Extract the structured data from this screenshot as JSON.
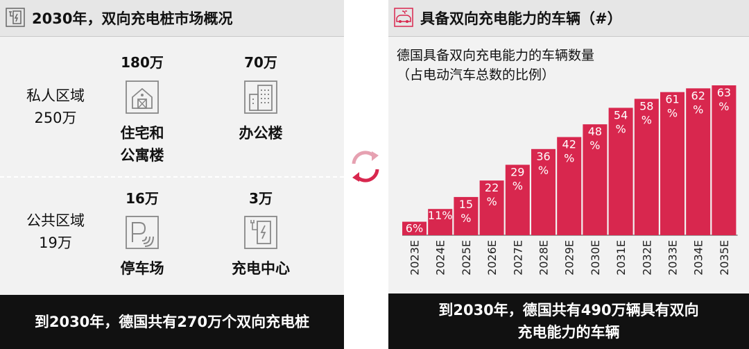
{
  "left": {
    "title": "2030年，双向充电桩市场概况",
    "private": {
      "name": "私人区域",
      "total": "250万"
    },
    "public": {
      "name": "公共区域",
      "total": "19万"
    },
    "tiles": {
      "residential": {
        "count": "180万",
        "label_1": "住宅和",
        "label_2": "公寓楼",
        "icon": "house-icon"
      },
      "office": {
        "count": "70万",
        "label": "办公楼",
        "icon": "office-building-icon"
      },
      "parking": {
        "count": "16万",
        "label": "停车场",
        "icon": "parking-icon"
      },
      "charging": {
        "count": "3万",
        "label": "充电中心",
        "icon": "charging-station-icon"
      }
    },
    "footer": "到2030年，德国共有270万个双向充电桩"
  },
  "right": {
    "title": "具备双向充电能力的车辆（#）",
    "subtitle_1": "德国具备双向充电能力的车辆数量",
    "subtitle_2": "（占电动汽车总数的比例）",
    "footer_1": "到2030年，德国共有490万辆具有双向",
    "footer_2": "充电能力的车辆"
  },
  "colors": {
    "accent": "#d8274e",
    "panel": "#f2f2f2",
    "header": "#e6e6e6",
    "footer": "#111111"
  },
  "chart_data": {
    "type": "bar",
    "categories": [
      "2023E",
      "2024E",
      "2025E",
      "2026E",
      "2027E",
      "2028E",
      "2029E",
      "2030E",
      "2031E",
      "2032E",
      "2033E",
      "2034E",
      "2035E"
    ],
    "values": [
      6,
      11,
      15,
      22,
      29,
      36,
      42,
      48,
      54,
      58,
      61,
      62,
      63
    ],
    "labels": [
      "6%",
      "11%",
      "15\n%",
      "22\n%",
      "29\n%",
      "36\n%",
      "42\n%",
      "48\n%",
      "54\n%",
      "58\n%",
      "61\n%",
      "62\n%",
      "63\n%"
    ],
    "bar_heights_relative": [
      0.09,
      0.175,
      0.255,
      0.365,
      0.47,
      0.575,
      0.655,
      0.74,
      0.85,
      0.91,
      0.955,
      0.98,
      1.0
    ],
    "title": "德国具备双向充电能力的车辆数量",
    "subtitle": "（占电动汽车总数的比例）",
    "xlabel": "",
    "ylabel": "",
    "grid": false,
    "legend": "none"
  }
}
